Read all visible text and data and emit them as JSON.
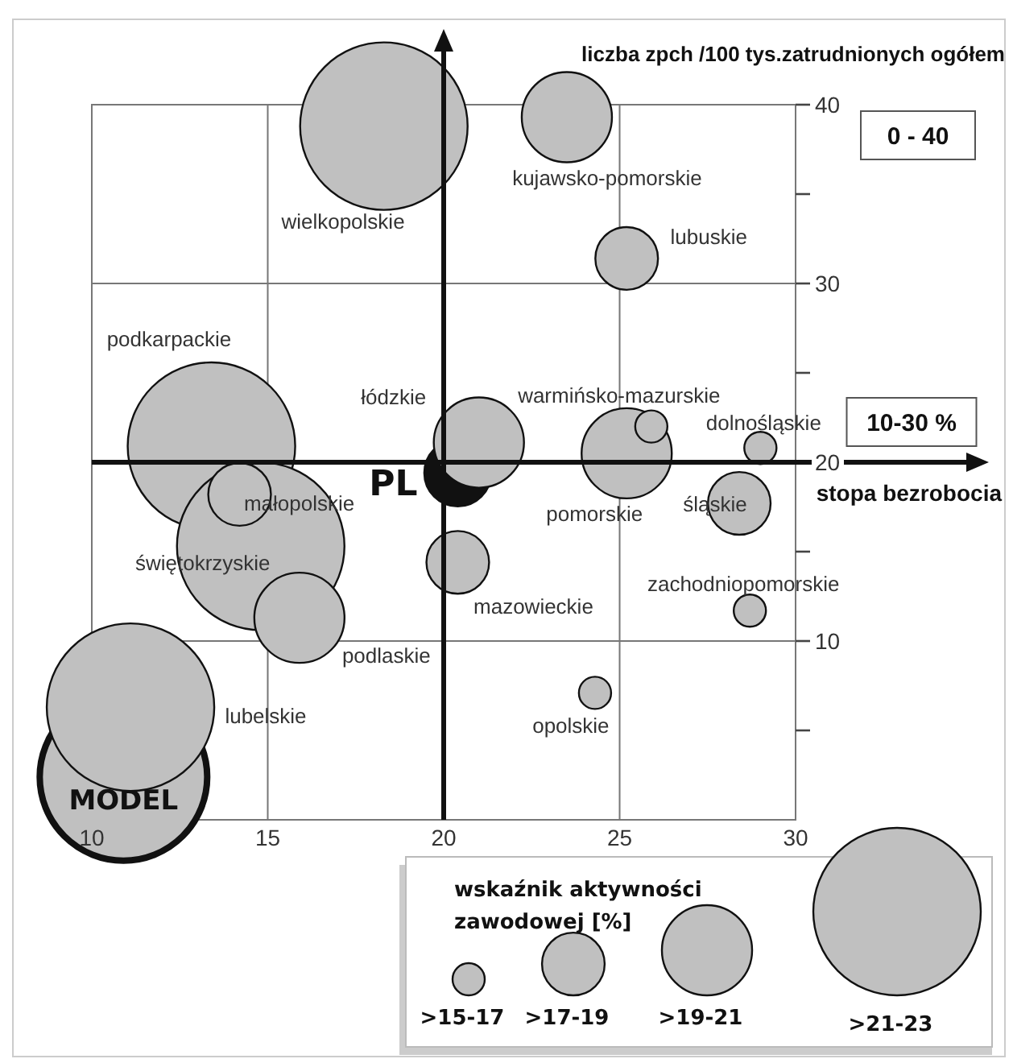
{
  "chart_data": {
    "type": "bubble",
    "xlabel": "stopa bezrobocia",
    "ylabel": "liczba zpch /100 tys.zatrudnionych ogółem",
    "legend_title": "wskaźnik aktywności zawodowej [%]",
    "xlim": [
      10,
      30
    ],
    "xticks": [
      10,
      15,
      20,
      25,
      30
    ],
    "ylim": [
      0,
      40
    ],
    "yticks": [
      {
        "value": 5,
        "label": null
      },
      10,
      {
        "value": 15,
        "label": null
      },
      20,
      {
        "value": 25,
        "label": null
      },
      30,
      {
        "value": 35,
        "label": null
      },
      40
    ],
    "grid": true,
    "size_legend": [
      {
        "value": 0.037,
        "label": ">15-17"
      },
      {
        "value": 0.14,
        "label": ">17-19"
      },
      {
        "value": 0.29,
        "label": ">19-21"
      },
      {
        "value": 1,
        "label": ">21-23"
      }
    ],
    "series": [
      {
        "name": "MODEL",
        "color": "#c0c0c0",
        "x": [
          10.9
        ],
        "values": [
          2.4
        ],
        "sizes": [
          1
        ]
      },
      {
        "name": "PL",
        "color": "#111111",
        "x": [
          20.4
        ],
        "values": [
          19.4
        ],
        "sizes": [
          0.16
        ]
      },
      {
        "color": "#c0c0c0",
        "x": [
          18.3,
          13.4,
          14.8,
          11.1,
          23.5,
          15.9,
          21.0,
          25.2,
          25.2,
          14.2,
          20.4,
          28.4,
          25.9,
          29.0,
          28.7,
          24.3
        ],
        "values": [
          38.8,
          20.9,
          15.3,
          6.3,
          39.3,
          11.3,
          21.1,
          20.5,
          31.4,
          18.2,
          14.4,
          17.7,
          22.0,
          20.8,
          11.7,
          7.1
        ],
        "sizes": [
          1,
          1,
          1,
          1,
          0.29,
          0.29,
          0.29,
          0.29,
          0.14,
          0.14,
          0.14,
          0.14,
          0.037,
          0.037,
          0.037,
          0.037
        ]
      }
    ],
    "annotations": [
      "0 - 40",
      "10-30 %",
      "wielkopolskie",
      "podkarpackie",
      {
        "text": "świętokrzyskie",
        "x": 14.8,
        "y": 15.3
      },
      "lubelskie",
      {
        "text": "kujawsko-pomorskie",
        "x": 23.5,
        "y": 39.3
      },
      {
        "text": "podlaskie",
        "x": 15.9,
        "y": 11.3
      },
      {
        "text": "łódzkie",
        "x": 21.0,
        "y": 21.1
      },
      {
        "text": "pomorskie",
        "x": 25.2,
        "y": 20.5
      },
      {
        "text": "lubuskie",
        "x": 25.2,
        "y": 31.4
      },
      {
        "text": "małopolskie",
        "x": 14.2,
        "y": 18.2
      },
      {
        "text": "mazowieckie",
        "x": 20.4,
        "y": 14.4
      },
      {
        "text": "śląskie",
        "x": 28.4,
        "y": 17.7
      },
      {
        "text": "warmińsko-mazurskie",
        "x": 25.9,
        "y": 22.0
      },
      {
        "text": "dolnośląskie",
        "x": 29.0,
        "y": 20.8
      },
      {
        "text": "zachodniopomorskie",
        "x": 28.7,
        "y": 11.7
      },
      {
        "text": "opolskie",
        "x": 24.3,
        "y": 7.1
      }
    ]
  }
}
